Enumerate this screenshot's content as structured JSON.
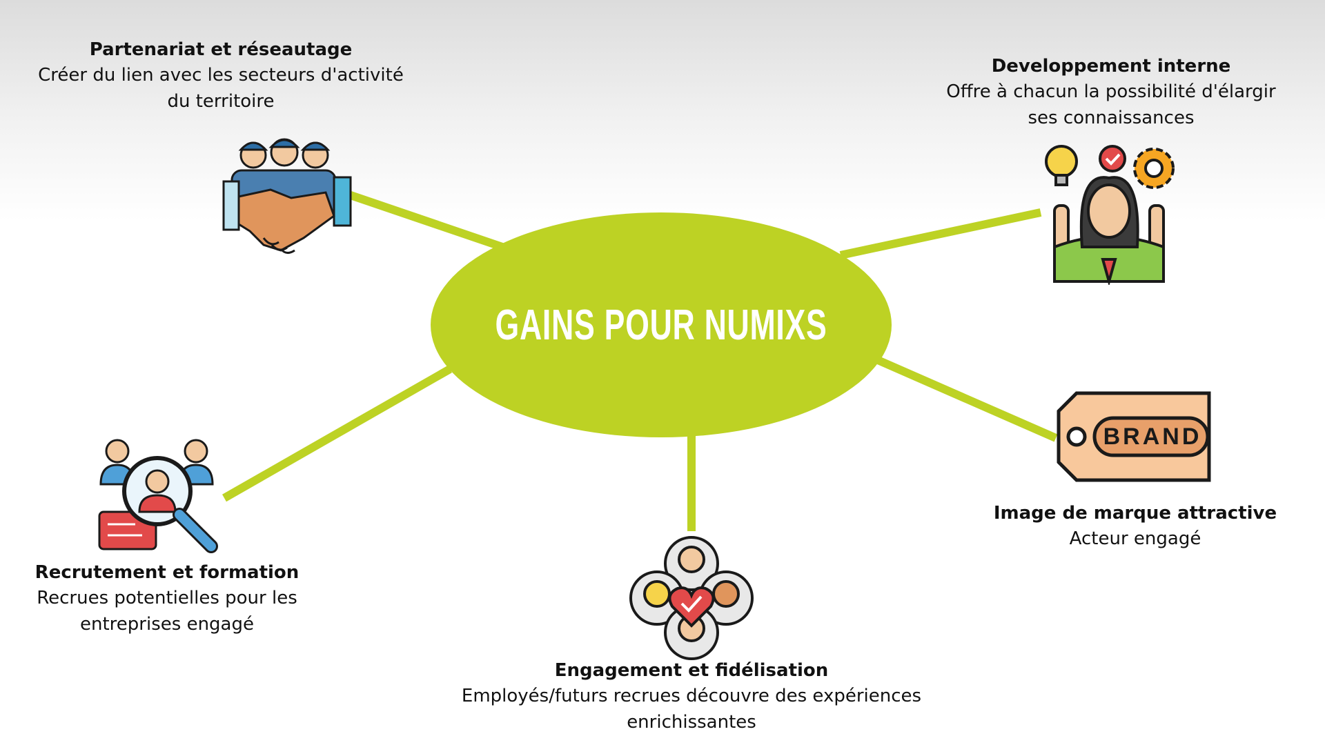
{
  "center": {
    "label": "GAINS POUR NUMIXS"
  },
  "branches": {
    "partnership": {
      "title": "Partenariat et réseautage",
      "desc_line1": "Créer du lien avec les secteurs d'activité",
      "desc_line2": "du territoire",
      "icon": "handshake-team-icon"
    },
    "internal_dev": {
      "title": "Developpement interne",
      "desc_line1": "Offre à chacun la possibilité d'élargir",
      "desc_line2": "ses connaissances",
      "icon": "woman-ideas-icon"
    },
    "recruitment": {
      "title": "Recrutement et formation",
      "desc_line1": "Recrues potentielles pour les",
      "desc_line2": "entreprises engagé",
      "icon": "recruitment-magnifier-icon"
    },
    "brand": {
      "title": "Image de marque attractive",
      "desc_line1": "Acteur engagé",
      "tag_text": "BRAND",
      "icon": "brand-tag-icon"
    },
    "engagement": {
      "title": "Engagement et fidélisation",
      "desc_line1": "Employés/futurs recrues découvre des expériences",
      "desc_line2": "enrichissantes",
      "icon": "team-heart-icon"
    }
  },
  "colors": {
    "accent": "#bdd224",
    "text": "#111111",
    "background_top": "#dcdcdc",
    "background_bottom": "#ffffff"
  }
}
